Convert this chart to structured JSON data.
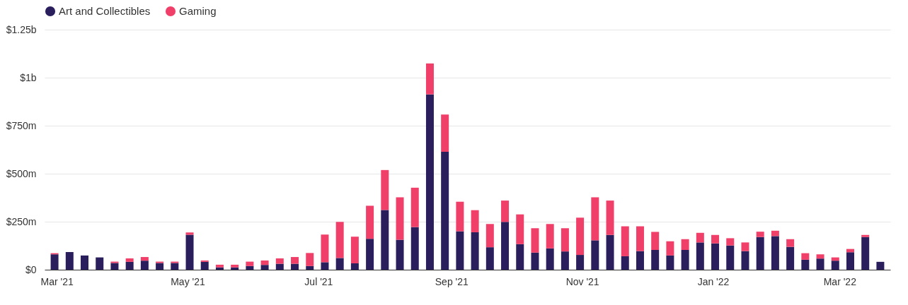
{
  "chart_data": {
    "type": "bar",
    "stacked": true,
    "legend": "top",
    "grid": "y",
    "x": [
      "2021-02-28",
      "2021-03-07",
      "2021-03-14",
      "2021-03-21",
      "2021-03-28",
      "2021-04-04",
      "2021-04-11",
      "2021-04-18",
      "2021-04-25",
      "2021-05-02",
      "2021-05-09",
      "2021-05-16",
      "2021-05-23",
      "2021-05-30",
      "2021-06-06",
      "2021-06-13",
      "2021-06-20",
      "2021-06-27",
      "2021-07-04",
      "2021-07-11",
      "2021-07-18",
      "2021-07-25",
      "2021-08-01",
      "2021-08-08",
      "2021-08-15",
      "2021-08-22",
      "2021-08-29",
      "2021-09-05",
      "2021-09-12",
      "2021-09-19",
      "2021-09-26",
      "2021-10-03",
      "2021-10-10",
      "2021-10-17",
      "2021-10-24",
      "2021-10-31",
      "2021-11-07",
      "2021-11-14",
      "2021-11-21",
      "2021-11-28",
      "2021-12-05",
      "2021-12-12",
      "2021-12-19",
      "2021-12-26",
      "2022-01-02",
      "2022-01-09",
      "2022-01-16",
      "2022-01-23",
      "2022-01-30",
      "2022-02-06",
      "2022-02-13",
      "2022-02-20",
      "2022-02-27",
      "2022-03-06",
      "2022-03-13",
      "2022-03-20"
    ],
    "series": [
      {
        "name": "Art and Collectibles",
        "color": "#2a1f5c",
        "values": [
          80000000,
          92000000,
          74000000,
          64000000,
          35000000,
          41000000,
          47000000,
          35000000,
          35000000,
          182000000,
          41000000,
          12000000,
          12000000,
          19000000,
          25000000,
          31000000,
          31000000,
          19000000,
          39000000,
          61000000,
          33000000,
          161000000,
          311000000,
          156000000,
          222000000,
          913000000,
          614000000,
          200000000,
          195000000,
          117000000,
          249000000,
          133000000,
          89000000,
          111000000,
          95000000,
          77000000,
          153000000,
          181000000,
          70000000,
          97000000,
          103000000,
          74000000,
          103000000,
          142000000,
          137000000,
          126000000,
          97000000,
          170000000,
          175000000,
          119000000,
          52000000,
          58000000,
          47000000,
          91000000,
          170000000,
          41000000
        ]
      },
      {
        "name": "Gaming",
        "color": "#f0406a",
        "values": [
          6000000,
          0,
          0,
          0,
          7000000,
          18000000,
          19000000,
          7000000,
          7000000,
          12000000,
          7000000,
          14000000,
          14000000,
          23000000,
          23000000,
          28000000,
          35000000,
          68000000,
          144000000,
          188000000,
          139000000,
          172000000,
          208000000,
          221000000,
          205000000,
          161000000,
          194000000,
          154000000,
          115000000,
          121000000,
          111000000,
          155000000,
          127000000,
          127000000,
          121000000,
          194000000,
          224000000,
          179000000,
          156000000,
          129000000,
          94000000,
          74000000,
          56000000,
          50000000,
          44000000,
          38000000,
          45000000,
          28000000,
          28000000,
          40000000,
          34000000,
          22000000,
          17000000,
          17000000,
          11000000,
          0
        ]
      }
    ],
    "xlim": [
      "2021-02-25",
      "2022-03-23"
    ],
    "xticks": [
      {
        "value": "2021-03-01",
        "label": "Mar '21"
      },
      {
        "value": "2021-05-01",
        "label": "May '21"
      },
      {
        "value": "2021-07-01",
        "label": "Jul '21"
      },
      {
        "value": "2021-09-01",
        "label": "Sep '21"
      },
      {
        "value": "2021-11-01",
        "label": "Nov '21"
      },
      {
        "value": "2022-01-01",
        "label": "Jan '22"
      },
      {
        "value": "2022-03-01",
        "label": "Mar '22"
      }
    ],
    "ylim": [
      0,
      1250000000
    ],
    "yticks": [
      {
        "value": 0,
        "label": "$0"
      },
      {
        "value": 250000000,
        "label": "$250m"
      },
      {
        "value": 500000000,
        "label": "$500m"
      },
      {
        "value": 750000000,
        "label": "$750m"
      },
      {
        "value": 1000000000,
        "label": "$1b"
      },
      {
        "value": 1250000000,
        "label": "$1.25b"
      }
    ]
  }
}
